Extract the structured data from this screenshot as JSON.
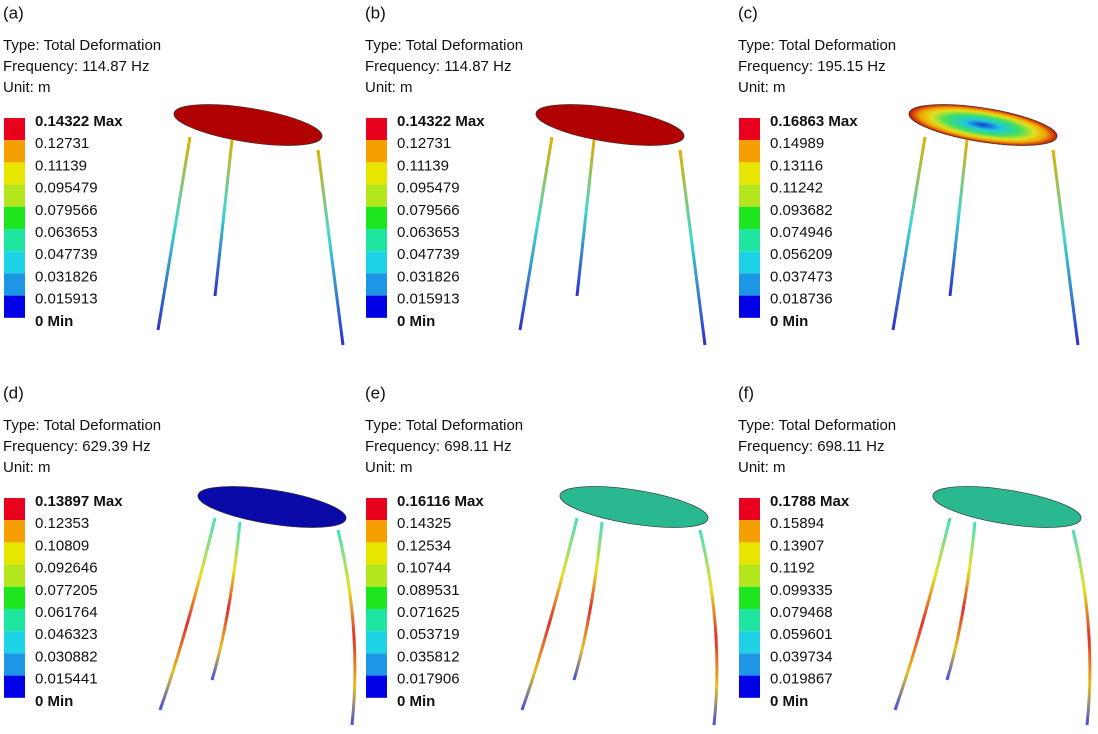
{
  "panels": [
    {
      "label": "(a)",
      "type": "Type: Total Deformation",
      "frequency": "Frequency: 114.87 Hz",
      "unit": "Unit: m",
      "legend": [
        "0.14322 Max",
        "0.12731",
        "0.11139",
        "0.095479",
        "0.079566",
        "0.063653",
        "0.047739",
        "0.031826",
        "0.015913",
        "0 Min"
      ]
    },
    {
      "label": "(b)",
      "type": "Type: Total Deformation",
      "frequency": "Frequency: 114.87 Hz",
      "unit": "Unit: m",
      "legend": [
        "0.14322 Max",
        "0.12731",
        "0.11139",
        "0.095479",
        "0.079566",
        "0.063653",
        "0.047739",
        "0.031826",
        "0.015913",
        "0 Min"
      ]
    },
    {
      "label": "(c)",
      "type": "Type: Total Deformation",
      "frequency": "Frequency: 195.15 Hz",
      "unit": "Unit: m",
      "legend": [
        "0.16863 Max",
        "0.14989",
        "0.13116",
        "0.11242",
        "0.093682",
        "0.074946",
        "0.056209",
        "0.037473",
        "0.018736",
        "0 Min"
      ]
    },
    {
      "label": "(d)",
      "type": "Type: Total Deformation",
      "frequency": "Frequency: 629.39 Hz",
      "unit": "Unit: m",
      "legend": [
        "0.13897 Max",
        "0.12353",
        "0.10809",
        "0.092646",
        "0.077205",
        "0.061764",
        "0.046323",
        "0.030882",
        "0.015441",
        "0 Min"
      ]
    },
    {
      "label": "(e)",
      "type": "Type: Total Deformation",
      "frequency": "Frequency: 698.11 Hz",
      "unit": "Unit: m",
      "legend": [
        "0.16116 Max",
        "0.14325",
        "0.12534",
        "0.10744",
        "0.089531",
        "0.071625",
        "0.053719",
        "0.035812",
        "0.017906",
        "0 Min"
      ]
    },
    {
      "label": "(f)",
      "type": "Type: Total Deformation",
      "frequency": "Frequency: 698.11 Hz",
      "unit": "Unit: m",
      "legend": [
        "0.1788 Max",
        "0.15894",
        "0.13907",
        "0.1192",
        "0.099335",
        "0.079468",
        "0.059601",
        "0.039734",
        "0.019867",
        "0 Min"
      ]
    }
  ]
}
